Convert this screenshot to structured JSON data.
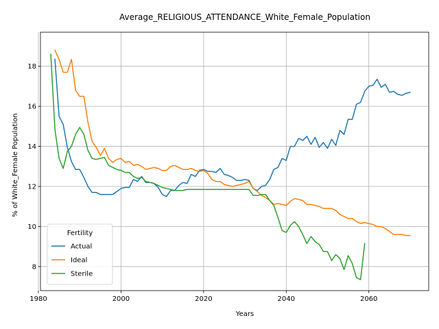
{
  "chart_data": {
    "type": "line",
    "title": "Average_RELIGIOUS_ATTENDANCE_White_Female_Population",
    "xlabel": "Years",
    "ylabel": "% of White_Female Population",
    "xlim": [
      1980.5,
      2074.5
    ],
    "ylim": [
      6.8,
      19.7
    ],
    "xticks": [
      1980,
      2000,
      2020,
      2040,
      2060
    ],
    "yticks": [
      8,
      10,
      12,
      14,
      16,
      18
    ],
    "grid": true,
    "legend": {
      "title": "Fertility",
      "location": "lower-left"
    },
    "series": [
      {
        "name": "Actual",
        "color": "#1f77b4",
        "x": [
          1984,
          1985,
          1986,
          1987,
          1988,
          1989,
          1990,
          1991,
          1992,
          1993,
          1994,
          1995,
          1996,
          1997,
          1998,
          1999,
          2000,
          2001,
          2002,
          2003,
          2004,
          2005,
          2006,
          2007,
          2008,
          2009,
          2010,
          2011,
          2012,
          2013,
          2014,
          2015,
          2016,
          2017,
          2018,
          2019,
          2020,
          2021,
          2022,
          2023,
          2024,
          2025,
          2026,
          2027,
          2028,
          2029,
          2030,
          2031,
          2032,
          2033,
          2034,
          2035,
          2036,
          2037,
          2038,
          2039,
          2040,
          2041,
          2042,
          2043,
          2044,
          2045,
          2046,
          2047,
          2048,
          2049,
          2050,
          2051,
          2052,
          2053,
          2054,
          2055,
          2056,
          2057,
          2058,
          2059,
          2060,
          2061,
          2062,
          2063,
          2064,
          2065,
          2066,
          2067,
          2068,
          2069,
          2070
        ],
        "y": [
          18.35,
          15.5,
          15.1,
          13.95,
          13.25,
          12.85,
          12.85,
          12.45,
          12.0,
          11.7,
          11.7,
          11.6,
          11.6,
          11.6,
          11.6,
          11.75,
          11.9,
          11.95,
          11.95,
          12.35,
          12.25,
          12.5,
          12.2,
          12.2,
          12.15,
          11.95,
          11.6,
          11.5,
          11.8,
          11.8,
          12.05,
          12.2,
          12.15,
          12.6,
          12.5,
          12.8,
          12.85,
          12.75,
          12.75,
          12.7,
          12.9,
          12.6,
          12.55,
          12.45,
          12.3,
          12.3,
          12.35,
          12.3,
          11.9,
          11.8,
          12.0,
          12.05,
          12.35,
          12.85,
          12.95,
          13.4,
          13.3,
          14.0,
          14.0,
          14.4,
          14.3,
          14.5,
          14.1,
          14.45,
          13.95,
          14.2,
          13.9,
          14.35,
          14.05,
          14.8,
          14.6,
          15.35,
          15.35,
          16.1,
          16.2,
          16.75,
          17.0,
          17.05,
          17.35,
          16.95,
          17.1,
          16.7,
          16.75,
          16.6,
          16.55,
          16.65,
          16.7
        ]
      },
      {
        "name": "Ideal",
        "color": "#ff7f0e",
        "x": [
          1984,
          1985,
          1986,
          1987,
          1988,
          1989,
          1990,
          1991,
          1992,
          1993,
          1994,
          1995,
          1996,
          1997,
          1998,
          1999,
          2000,
          2001,
          2002,
          2003,
          2004,
          2005,
          2006,
          2007,
          2008,
          2009,
          2010,
          2011,
          2012,
          2013,
          2014,
          2015,
          2016,
          2017,
          2018,
          2019,
          2020,
          2021,
          2022,
          2023,
          2024,
          2025,
          2026,
          2027,
          2028,
          2029,
          2030,
          2031,
          2032,
          2033,
          2034,
          2035,
          2036,
          2037,
          2038,
          2039,
          2040,
          2041,
          2042,
          2043,
          2044,
          2045,
          2046,
          2047,
          2048,
          2049,
          2050,
          2051,
          2052,
          2053,
          2054,
          2055,
          2056,
          2057,
          2058,
          2059,
          2060,
          2061,
          2062,
          2063,
          2064,
          2065,
          2066,
          2067,
          2068,
          2069,
          2070
        ],
        "y": [
          18.8,
          18.35,
          17.7,
          17.7,
          18.35,
          16.8,
          16.5,
          16.5,
          15.2,
          14.25,
          13.95,
          13.55,
          13.9,
          13.4,
          13.2,
          13.35,
          13.4,
          13.2,
          13.25,
          13.05,
          13.1,
          13.0,
          12.85,
          12.9,
          12.95,
          12.9,
          12.8,
          12.8,
          13.0,
          13.05,
          12.95,
          12.85,
          12.85,
          12.9,
          12.8,
          12.75,
          12.8,
          12.65,
          12.35,
          12.25,
          12.25,
          12.1,
          12.05,
          12.0,
          12.05,
          12.1,
          12.15,
          12.25,
          11.9,
          11.75,
          11.55,
          11.45,
          11.3,
          11.1,
          11.15,
          11.1,
          11.05,
          11.25,
          11.4,
          11.35,
          11.3,
          11.1,
          11.1,
          11.05,
          11.0,
          10.9,
          10.9,
          10.9,
          10.8,
          10.6,
          10.5,
          10.4,
          10.4,
          10.25,
          10.15,
          10.2,
          10.15,
          10.1,
          10.0,
          10.0,
          9.9,
          9.75,
          9.6,
          9.6,
          9.6,
          9.55,
          9.55
        ]
      },
      {
        "name": "Sterile",
        "color": "#2ca02c",
        "x": [
          1983,
          1984,
          1985,
          1986,
          1987,
          1988,
          1989,
          1990,
          1991,
          1992,
          1993,
          1994,
          1995,
          1996,
          1997,
          1998,
          1999,
          2000,
          2001,
          2002,
          2003,
          2004,
          2005,
          2006,
          2007,
          2008,
          2009,
          2010,
          2011,
          2012,
          2013,
          2014,
          2015,
          2016,
          2017,
          2018,
          2019,
          2020,
          2021,
          2022,
          2023,
          2024,
          2025,
          2026,
          2027,
          2028,
          2029,
          2030,
          2031,
          2032,
          2033,
          2034,
          2035,
          2036,
          2037,
          2038,
          2039,
          2040,
          2041,
          2042,
          2043,
          2044,
          2045,
          2046,
          2047,
          2048,
          2049,
          2050,
          2051,
          2052,
          2053,
          2054,
          2055,
          2056,
          2057,
          2058,
          2059
        ],
        "y": [
          18.6,
          14.85,
          13.4,
          12.9,
          13.75,
          14.0,
          14.6,
          14.95,
          14.6,
          13.8,
          13.4,
          13.35,
          13.4,
          13.45,
          13.05,
          12.95,
          12.85,
          12.8,
          12.7,
          12.7,
          12.5,
          12.4,
          12.45,
          12.25,
          12.2,
          12.15,
          12.05,
          11.95,
          11.9,
          11.85,
          11.8,
          11.8,
          11.8,
          11.85,
          11.85,
          11.85,
          11.85,
          11.85,
          11.85,
          11.85,
          11.85,
          11.85,
          11.85,
          11.85,
          11.85,
          11.85,
          11.85,
          11.85,
          11.85,
          11.55,
          11.55,
          11.6,
          11.6,
          11.3,
          11.05,
          10.45,
          9.8,
          9.7,
          10.05,
          10.25,
          10.0,
          9.6,
          9.15,
          9.5,
          9.25,
          9.1,
          8.75,
          8.75,
          8.3,
          8.6,
          8.4,
          7.85,
          8.55,
          8.15,
          7.45,
          7.35,
          9.15
        ]
      }
    ]
  }
}
